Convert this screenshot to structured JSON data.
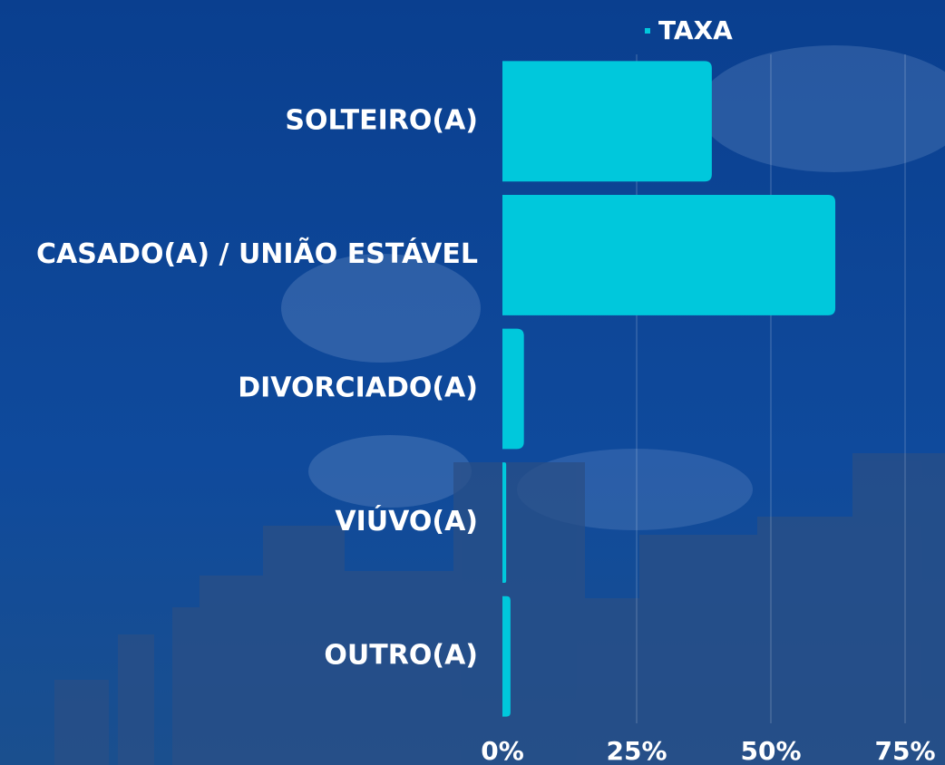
{
  "chart_data": {
    "type": "bar",
    "orientation": "horizontal",
    "categories": [
      "SOLTEIRO(A)",
      "CASADO(A) / UNIÃO ESTÁVEL",
      "DIVORCIADO(A)",
      "VIÚVO(A)",
      "OUTRO(A)"
    ],
    "series": [
      {
        "name": "TAXA",
        "color": "#00c8dc",
        "values": [
          39,
          62,
          4,
          0.7,
          1.5
        ]
      }
    ],
    "xlim": [
      0,
      75
    ],
    "xticks": [
      {
        "value": 0,
        "label": "0%"
      },
      {
        "value": 25,
        "label": "25%"
      },
      {
        "value": 50,
        "label": "50%"
      },
      {
        "value": 75,
        "label": "75%"
      }
    ],
    "grid": true,
    "legend": "top"
  }
}
